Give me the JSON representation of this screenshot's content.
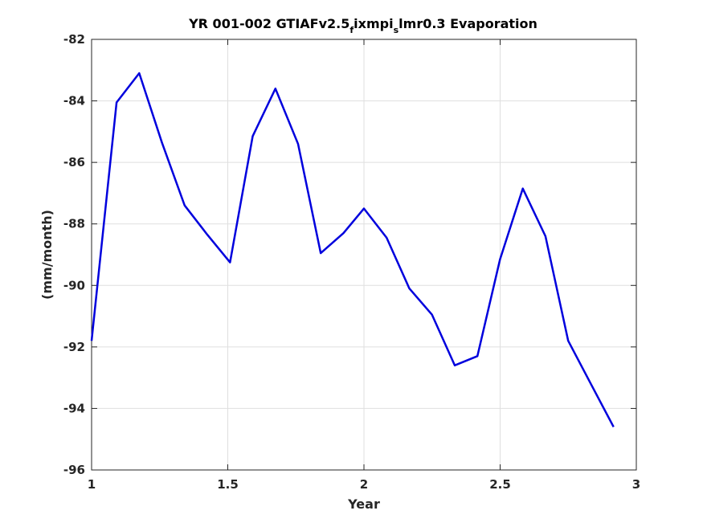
{
  "chart_data": {
    "type": "line",
    "title": {
      "p1": "YR 001-002 GTIAFv2.5",
      "s1": "f",
      "p2": "ixmpi",
      "s2": "s",
      "p3": "lmr0.3 Evaporation"
    },
    "xlabel": "Year",
    "ylabel": "(mm/month)",
    "xlim": [
      1,
      3
    ],
    "ylim": [
      -96,
      -82
    ],
    "xticks": [
      1,
      1.5,
      2,
      2.5,
      3
    ],
    "xtick_labels": [
      "1",
      "1.5",
      "2",
      "2.5",
      "3"
    ],
    "yticks": [
      -96,
      -94,
      -92,
      -90,
      -88,
      -86,
      -84,
      -82
    ],
    "ytick_labels": [
      "-96",
      "-94",
      "-92",
      "-90",
      "-88",
      "-86",
      "-84",
      "-82"
    ],
    "grid": true,
    "line_color": "#0000dd",
    "series": [
      {
        "x": [
          1.0,
          1.0916,
          1.1749,
          1.2582,
          1.3415,
          1.4248,
          1.5082,
          1.5915,
          1.6748,
          1.7581,
          1.8414,
          1.9248,
          2.0,
          2.0833,
          2.1666,
          2.2499,
          2.3332,
          2.4165,
          2.4998,
          2.5832,
          2.6665,
          2.7498,
          2.8331,
          2.9164
        ],
        "values": [
          -91.8,
          -84.05,
          -83.1,
          -85.35,
          -87.4,
          -88.35,
          -89.25,
          -85.15,
          -83.6,
          -85.4,
          -88.95,
          -88.3,
          -87.5,
          -88.45,
          -90.1,
          -90.95,
          -92.6,
          -92.3,
          -89.15,
          -86.85,
          -88.4,
          -91.8,
          -93.2,
          -94.6
        ]
      }
    ]
  }
}
